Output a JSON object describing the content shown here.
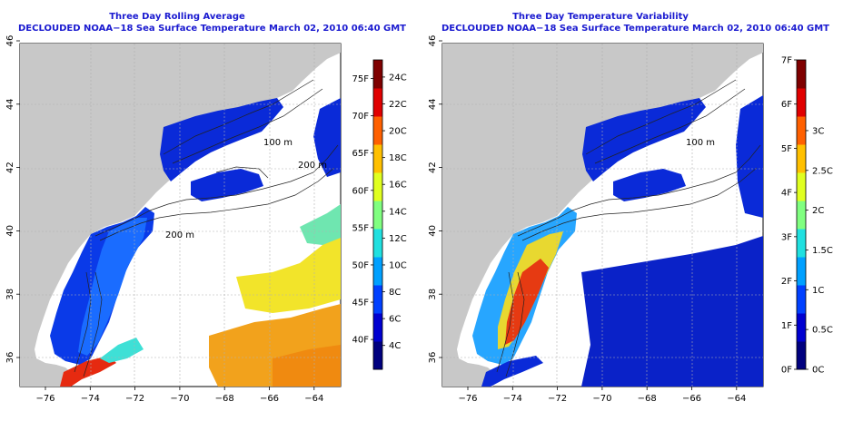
{
  "panels": [
    {
      "id": "left",
      "title": "Three Day Rolling Average",
      "subtitle": "DECLOUDED NOAA−18 Sea Surface Temperature March 02, 2010 06:40 GMT",
      "colorbar": {
        "colors": [
          "#00007f",
          "#0000d0",
          "#0040ff",
          "#00a0ff",
          "#20e0e0",
          "#80ff80",
          "#e0ff20",
          "#ffc000",
          "#ff6000",
          "#e00000",
          "#7f0000"
        ],
        "f_labels": [
          "40F",
          "45F",
          "50F",
          "55F",
          "60F",
          "65F",
          "70F",
          "75F"
        ],
        "c_labels": [
          "4C",
          "6C",
          "8C",
          "10C",
          "12C",
          "14C",
          "16C",
          "18C",
          "20C",
          "22C",
          "24C"
        ]
      }
    },
    {
      "id": "right",
      "title": "Three Day Temperature Variability",
      "subtitle": "DECLOUDED NOAA−18 Sea Surface Temperature March 02, 2010 06:40 GMT",
      "colorbar": {
        "colors": [
          "#00007f",
          "#0000d0",
          "#0040ff",
          "#00a0ff",
          "#20e0e0",
          "#80ff80",
          "#e0ff20",
          "#ffc000",
          "#ff6000",
          "#e00000",
          "#7f0000"
        ],
        "f_labels": [
          "0F",
          "1F",
          "2F",
          "3F",
          "4F",
          "5F",
          "6F",
          "7F"
        ],
        "c_labels": [
          "0C",
          "0.5C",
          "1C",
          "1.5C",
          "2C",
          "2.5C",
          "3C"
        ]
      }
    }
  ],
  "axes": {
    "x_ticks": [
      "−76",
      "−74",
      "−72",
      "−70",
      "−68",
      "−66",
      "−64"
    ],
    "y_ticks": [
      "36",
      "38",
      "40",
      "42",
      "44",
      "46"
    ]
  },
  "contour_labels": [
    "100 m",
    "200 m",
    "200 m",
    "100 m"
  ]
}
